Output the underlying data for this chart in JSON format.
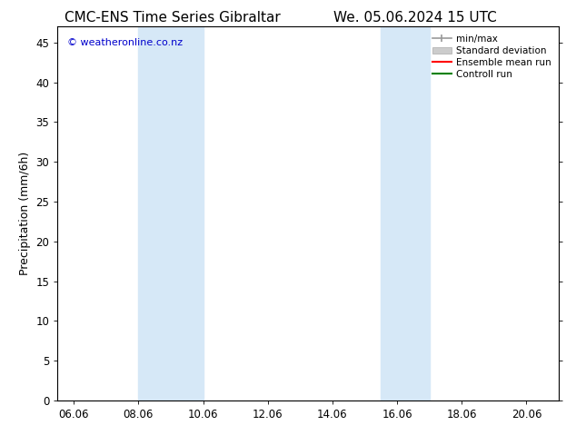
{
  "title_left": "CMC-ENS Time Series Gibraltar",
  "title_right": "We. 05.06.2024 15 UTC",
  "ylabel": "Precipitation (mm/6h)",
  "xlabel": "",
  "xlim": [
    5.5,
    21.0
  ],
  "ylim": [
    0,
    47
  ],
  "yticks": [
    0,
    5,
    10,
    15,
    20,
    25,
    30,
    35,
    40,
    45
  ],
  "xtick_labels": [
    "06.06",
    "08.06",
    "10.06",
    "12.06",
    "14.06",
    "16.06",
    "18.06",
    "20.06"
  ],
  "xtick_positions": [
    6.0,
    8.0,
    10.0,
    12.0,
    14.0,
    16.0,
    18.0,
    20.0
  ],
  "shaded_bands": [
    {
      "x_start": 8.0,
      "x_end": 10.0,
      "color": "#d6e8f7"
    },
    {
      "x_start": 15.5,
      "x_end": 17.0,
      "color": "#d6e8f7"
    }
  ],
  "background_color": "#ffffff",
  "plot_bg_color": "#ffffff",
  "border_color": "#000000",
  "watermark_text": "© weatheronline.co.nz",
  "watermark_color": "#0000cc",
  "watermark_fontsize": 8,
  "legend_labels": [
    "min/max",
    "Standard deviation",
    "Ensemble mean run",
    "Controll run"
  ],
  "legend_colors": [
    "#999999",
    "#cccccc",
    "#ff0000",
    "#008000"
  ],
  "title_fontsize": 11,
  "axis_label_fontsize": 9,
  "tick_fontsize": 8.5
}
